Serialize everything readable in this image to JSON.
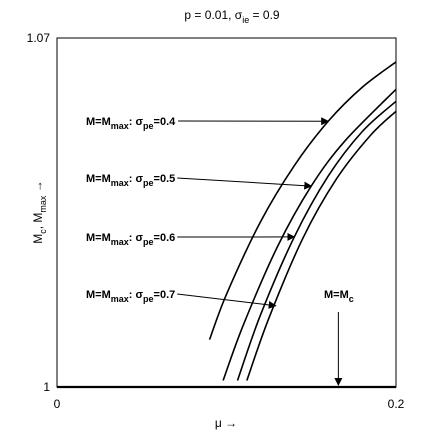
{
  "chart_data": {
    "type": "line",
    "title": {
      "base": "p = 0.01, σ",
      "sub": "ie",
      "tail": " = 0.9"
    },
    "xlabel": "μ →",
    "ylabel": {
      "a": "M",
      "a_sub": "c",
      "b": ", M",
      "b_sub": "max",
      "c": " →"
    },
    "xlim": [
      0,
      0.2
    ],
    "ylim": [
      1,
      1.07
    ],
    "xticks": [
      {
        "v": 0,
        "label": "0"
      },
      {
        "v": 0.2,
        "label": "0.2"
      }
    ],
    "yticks": [
      {
        "v": 1,
        "label": "1"
      },
      {
        "v": 1.07,
        "label": "1.07"
      }
    ],
    "grid": false,
    "series": [
      {
        "name": "M=Mmax : σpe=0.4",
        "x": [
          0.09,
          0.1,
          0.12,
          0.14,
          0.16,
          0.18,
          0.2
        ],
        "y": [
          1.0095,
          1.0186,
          1.0331,
          1.0444,
          1.0533,
          1.0601,
          1.0652
        ]
      },
      {
        "name": "M=Mmax : σpe=0.5",
        "x": [
          0.098,
          0.11,
          0.13,
          0.15,
          0.17,
          0.2
        ],
        "y": [
          1.0013,
          1.0125,
          1.0281,
          1.0403,
          1.0494,
          1.0597
        ]
      },
      {
        "name": "M=Mmax : σpe=0.6",
        "x": [
          0.1065,
          0.12,
          0.14,
          0.16,
          0.18,
          0.2
        ],
        "y": [
          1.0013,
          1.0144,
          1.0301,
          1.0423,
          1.0512,
          1.0573
        ]
      },
      {
        "name": "M=Mmax : σpe=0.7",
        "x": [
          0.112,
          0.125,
          0.145,
          0.165,
          0.185,
          0.2
        ],
        "y": [
          1.0013,
          1.0138,
          1.0298,
          1.0418,
          1.0505,
          1.0553
        ]
      },
      {
        "name": "M=Mc",
        "x": [
          0,
          0.2
        ],
        "y": [
          1.0,
          1.0
        ]
      }
    ],
    "annotations": [
      {
        "prefix": "M=M",
        "sub1": "max",
        "mid": ": σ",
        "sub2": "pe",
        "suffix": "=0.4",
        "target": [
          0.16,
          1.0533
        ]
      },
      {
        "prefix": "M=M",
        "sub1": "max",
        "mid": ": σ",
        "sub2": "pe",
        "suffix": "=0.5",
        "target": [
          0.15,
          1.0403
        ]
      },
      {
        "prefix": "M=M",
        "sub1": "max",
        "mid": ": σ",
        "sub2": "pe",
        "suffix": "=0.6",
        "target": [
          0.14,
          1.0301
        ]
      },
      {
        "prefix": "M=M",
        "sub1": "max",
        "mid": ": σ",
        "sub2": "pe",
        "suffix": "=0.7",
        "target": [
          0.129,
          1.0163
        ]
      },
      {
        "prefix": "M=M",
        "sub1": "c",
        "mid": "",
        "sub2": "",
        "suffix": "",
        "target": [
          0.166,
          1.0
        ]
      }
    ]
  }
}
